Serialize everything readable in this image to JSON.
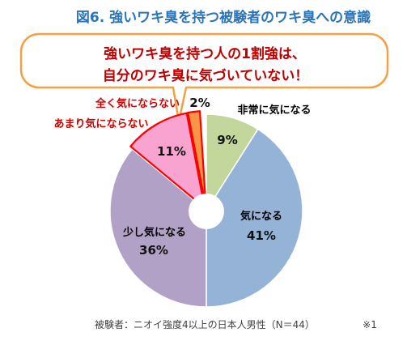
{
  "title": "図6. 強いワキ臭を持つ被験者のワキ臭への意識",
  "callout": {
    "line1": "強いワキ臭を持つ人の1割強は、",
    "line2": "自分のワキ臭に気づいていない！"
  },
  "chart_data": {
    "type": "pie",
    "donut": true,
    "unit": "%",
    "categories": [
      "非常に気になる",
      "気になる",
      "少し気になる",
      "あまり気にならない",
      "全く気にならない"
    ],
    "values": [
      9,
      41,
      36,
      11,
      2
    ],
    "colors": [
      "#c3d69b",
      "#95b3d7",
      "#b2a1c7",
      "#f9a4d0",
      "#f79646"
    ],
    "label_colors": [
      "#000000",
      "#000000",
      "#000000",
      "#d00000",
      "#d00000"
    ],
    "highlighted": [
      false,
      false,
      false,
      true,
      true
    ],
    "highlight_color": "#ff0000"
  },
  "footnote": "被験者：ニオイ強度4以上の日本人男性（N＝44）",
  "note_ref": "※1",
  "colors": {
    "title": "#2a74b9",
    "callout_border": "#f4a043",
    "callout_text": "#c00000",
    "footnote": "#404040"
  }
}
